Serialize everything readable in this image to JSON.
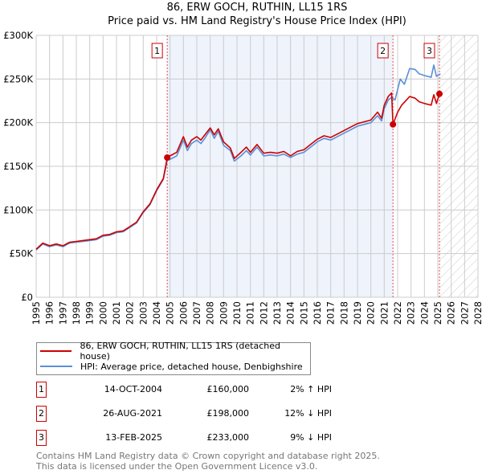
{
  "title": "86, ERW GOCH, RUTHIN, LL15 1RS",
  "subtitle": "Price paid vs. HM Land Registry's House Price Index (HPI)",
  "chart_data": {
    "type": "line",
    "title": "86, ERW GOCH, RUTHIN, LL15 1RS",
    "subtitle": "Price paid vs. HM Land Registry's House Price Index (HPI)",
    "xlim": [
      1995,
      2028
    ],
    "ylim": [
      0,
      300000
    ],
    "x_ticks": [
      "1995",
      "1996",
      "1997",
      "1998",
      "1999",
      "2000",
      "2001",
      "2002",
      "2003",
      "2004",
      "2005",
      "2006",
      "2007",
      "2008",
      "2009",
      "2010",
      "2011",
      "2012",
      "2013",
      "2014",
      "2015",
      "2016",
      "2017",
      "2018",
      "2019",
      "2020",
      "2021",
      "2022",
      "2023",
      "2024",
      "2025",
      "2026",
      "2027",
      "2028"
    ],
    "y_ticks": [
      {
        "v": 0,
        "label": "£0"
      },
      {
        "v": 50000,
        "label": "£50K"
      },
      {
        "v": 100000,
        "label": "£100K"
      },
      {
        "v": 150000,
        "label": "£150K"
      },
      {
        "v": 200000,
        "label": "£200K"
      },
      {
        "v": 250000,
        "label": "£250K"
      },
      {
        "v": 300000,
        "label": "£300K"
      }
    ],
    "grid": true,
    "shaded_range": [
      2004.79,
      2021.65
    ],
    "forecast_hatch_from": 2025.12,
    "colors": {
      "property": "#cc0000",
      "hpi": "#5b8fd6",
      "shade": "#eef3fc"
    },
    "series": [
      {
        "name": "86, ERW GOCH, RUTHIN, LL15 1RS (detached house)",
        "color": "#cc0000",
        "x": [
          1995,
          1995.5,
          1996,
          1996.5,
          1997,
          1997.5,
          1998,
          1998.5,
          1999,
          1999.5,
          2000,
          2000.5,
          2001,
          2001.5,
          2002,
          2002.5,
          2003,
          2003.5,
          2004,
          2004.5,
          2004.79,
          2005,
          2005.5,
          2006,
          2006.3,
          2006.6,
          2007,
          2007.3,
          2007.6,
          2008,
          2008.3,
          2008.6,
          2009,
          2009.5,
          2009.8,
          2010.3,
          2010.7,
          2011,
          2011.5,
          2012,
          2012.5,
          2013,
          2013.5,
          2014,
          2014.5,
          2015,
          2015.5,
          2016,
          2016.5,
          2017,
          2017.5,
          2018,
          2018.5,
          2019,
          2019.5,
          2020,
          2020.5,
          2020.8,
          2021,
          2021.3,
          2021.55,
          2021.65,
          2022,
          2022.3,
          2022.9,
          2023.3,
          2023.6,
          2024,
          2024.5,
          2024.7,
          2024.9,
          2025.12
        ],
        "y": [
          55000,
          62000,
          59000,
          61000,
          59000,
          63000,
          64000,
          65000,
          66000,
          67000,
          71000,
          72000,
          75000,
          76000,
          81000,
          86000,
          98000,
          107000,
          123000,
          136000,
          160000,
          162000,
          166000,
          184000,
          172000,
          180000,
          184000,
          180000,
          186000,
          194000,
          186000,
          193000,
          178000,
          171000,
          159000,
          166000,
          172000,
          166000,
          175000,
          165000,
          166000,
          165000,
          167000,
          162000,
          167000,
          169000,
          175000,
          181000,
          185000,
          183000,
          187000,
          191000,
          195000,
          199000,
          201000,
          203000,
          212000,
          205000,
          220000,
          230000,
          234000,
          198000,
          212000,
          220000,
          230000,
          228000,
          224000,
          222000,
          220000,
          232000,
          222000,
          233000
        ]
      },
      {
        "name": "HPI: Average price, detached house, Denbighshire",
        "color": "#5b8fd6",
        "x": [
          1995,
          1995.5,
          1996,
          1996.5,
          1997,
          1997.5,
          1998,
          1998.5,
          1999,
          1999.5,
          2000,
          2000.5,
          2001,
          2001.5,
          2002,
          2002.5,
          2003,
          2003.5,
          2004,
          2004.5,
          2004.79,
          2005,
          2005.5,
          2006,
          2006.3,
          2006.6,
          2007,
          2007.3,
          2007.6,
          2008,
          2008.3,
          2008.6,
          2009,
          2009.5,
          2009.8,
          2010.3,
          2010.7,
          2011,
          2011.5,
          2012,
          2012.5,
          2013,
          2013.5,
          2014,
          2014.5,
          2015,
          2015.5,
          2016,
          2016.5,
          2017,
          2017.5,
          2018,
          2018.5,
          2019,
          2019.5,
          2020,
          2020.5,
          2020.8,
          2021,
          2021.3,
          2021.55,
          2021.8,
          2022.2,
          2022.5,
          2022.9,
          2023.3,
          2023.6,
          2024,
          2024.5,
          2024.7,
          2024.9,
          2025.2
        ],
        "y": [
          54000,
          61000,
          58000,
          60000,
          58000,
          62000,
          63000,
          64000,
          65000,
          66000,
          70000,
          71000,
          74000,
          75000,
          80000,
          85000,
          97000,
          106000,
          122000,
          135000,
          157000,
          158000,
          162000,
          180000,
          168000,
          176000,
          180000,
          176000,
          182000,
          192000,
          182000,
          190000,
          174000,
          168000,
          156000,
          162000,
          168000,
          163000,
          172000,
          162000,
          163000,
          162000,
          164000,
          160000,
          164000,
          166000,
          172000,
          178000,
          182000,
          180000,
          184000,
          188000,
          192000,
          196000,
          198000,
          200000,
          208000,
          202000,
          216000,
          226000,
          229000,
          226000,
          250000,
          244000,
          262000,
          261000,
          256000,
          254000,
          252000,
          266000,
          253000,
          256000
        ]
      }
    ],
    "sales": [
      {
        "n": "1",
        "x": 2004.79,
        "y": 160000
      },
      {
        "n": "2",
        "x": 2021.65,
        "y": 198000
      },
      {
        "n": "3",
        "x": 2025.12,
        "y": 233000
      }
    ]
  },
  "legend": [
    {
      "label": "86, ERW GOCH, RUTHIN, LL15 1RS (detached house)",
      "color": "#cc0000"
    },
    {
      "label": "HPI: Average price, detached house, Denbighshire",
      "color": "#5b8fd6"
    }
  ],
  "transactions": [
    {
      "n": "1",
      "date": "14-OCT-2004",
      "price": "£160,000",
      "hpi": "2% ↑ HPI"
    },
    {
      "n": "2",
      "date": "26-AUG-2021",
      "price": "£198,000",
      "hpi": "12% ↓ HPI"
    },
    {
      "n": "3",
      "date": "13-FEB-2025",
      "price": "£233,000",
      "hpi": "9% ↓ HPI"
    }
  ],
  "footer": [
    "Contains HM Land Registry data © Crown copyright and database right 2025.",
    "This data is licensed under the Open Government Licence v3.0."
  ]
}
